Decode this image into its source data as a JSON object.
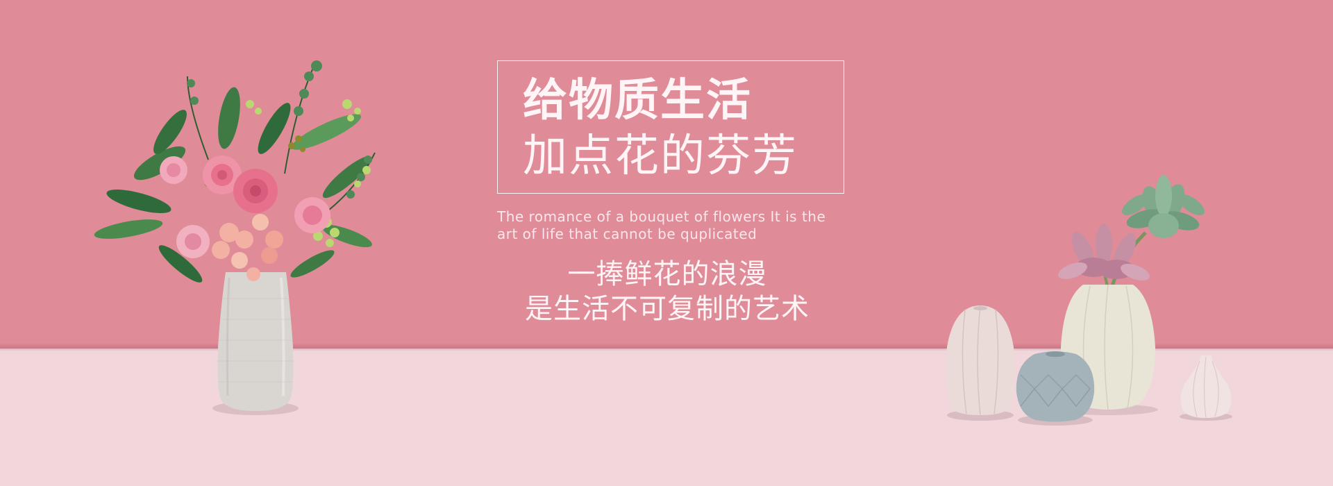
{
  "banner": {
    "headline_line1": "给物质生活",
    "headline_line2": "加点花的芬芳",
    "english_line1": "The romance of a bouquet of flowers It is the",
    "english_line2": "art of life that cannot be quplicated",
    "subtitle_line1": "一捧鲜花的浪漫",
    "subtitle_line2": "是生活不可复制的艺术"
  },
  "colors": {
    "wall": "#e08b98",
    "floor": "#f1d7dc",
    "text_light": "#fbe7eb",
    "text_white": "#fff4f6",
    "vase_white": "#d9d6d2",
    "vase_cream": "#e8e5d6",
    "vase_blush": "#eadad8",
    "vase_blue": "#a3b3b9",
    "rose_pink": "#e7718d",
    "leaf_green": "#3f7a44",
    "succulent_green": "#7fa98a",
    "succulent_mauve": "#c58fa4"
  }
}
